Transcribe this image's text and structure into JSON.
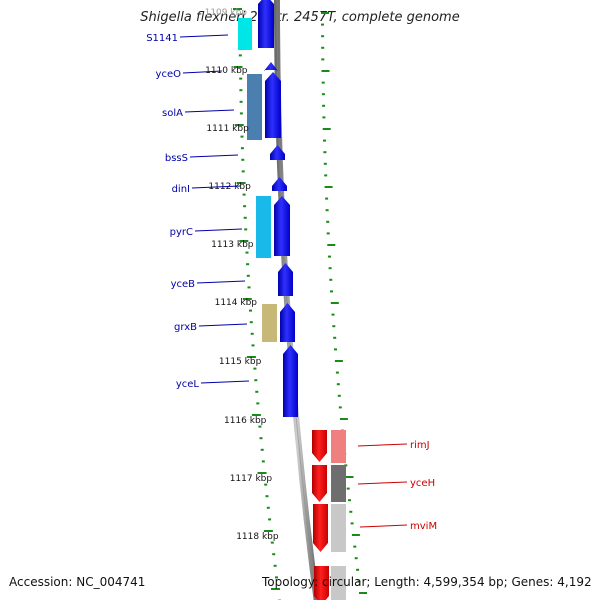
{
  "title": "Shigella flexneri 2a str. 2457T, complete genome",
  "footer": {
    "accession": "Accession: NC_004741",
    "topology": "Topology: circular; Length: 4,599,354 bp; Genes: 4,192"
  },
  "colors": {
    "forward_strand": "#0000ff",
    "reverse_strand": "#ff0000",
    "backbone": "#8a8a8a",
    "tick_marks": "#1a8a1a",
    "gene_label_forward": "#0000aa",
    "gene_label_reverse": "#cc0000"
  },
  "scale": {
    "labels": [
      "1109 kbp",
      "1110 kbp",
      "1111 kbp",
      "1112 kbp",
      "1113 kbp",
      "1114 kbp",
      "1115 kbp",
      "1116 kbp",
      "1117 kbp",
      "1118 kbp"
    ]
  },
  "genes_forward": [
    {
      "name": "S1141"
    },
    {
      "name": "yceO"
    },
    {
      "name": "solA"
    },
    {
      "name": "bssS"
    },
    {
      "name": "dinI"
    },
    {
      "name": "pyrC"
    },
    {
      "name": "yceB"
    },
    {
      "name": "grxB"
    },
    {
      "name": "yceL"
    }
  ],
  "genes_reverse": [
    {
      "name": "rimJ"
    },
    {
      "name": "yceH"
    },
    {
      "name": "mviM"
    }
  ]
}
